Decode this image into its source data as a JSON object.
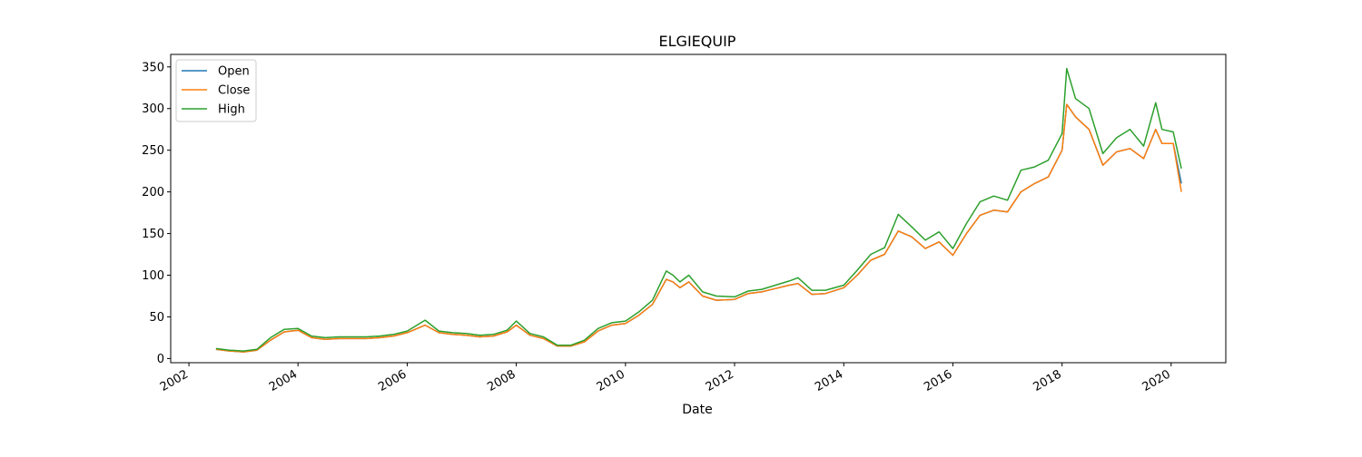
{
  "chart_data": {
    "type": "line",
    "title": "ELGIEQUIP",
    "xlabel": "Date",
    "ylabel": "",
    "xlim": [
      "2001-09-01",
      "2021-01-01"
    ],
    "ylim": [
      -5,
      365
    ],
    "x_ticks": [
      "2002",
      "2004",
      "2006",
      "2008",
      "2010",
      "2012",
      "2014",
      "2016",
      "2018",
      "2020"
    ],
    "y_ticks": [
      0,
      50,
      100,
      150,
      200,
      250,
      300,
      350
    ],
    "grid": false,
    "legend_position": "top-left",
    "x": [
      "2002-07-01",
      "2002-10-01",
      "2003-01-01",
      "2003-04-01",
      "2003-07-01",
      "2003-10-01",
      "2004-01-01",
      "2004-04-01",
      "2004-07-01",
      "2004-10-01",
      "2005-01-01",
      "2005-04-01",
      "2005-07-01",
      "2005-10-01",
      "2006-01-01",
      "2006-05-01",
      "2006-08-01",
      "2006-11-01",
      "2007-02-01",
      "2007-05-01",
      "2007-08-01",
      "2007-11-01",
      "2008-01-01",
      "2008-04-01",
      "2008-07-01",
      "2008-10-01",
      "2009-01-01",
      "2009-04-01",
      "2009-07-01",
      "2009-10-01",
      "2010-01-01",
      "2010-04-01",
      "2010-07-01",
      "2010-10-01",
      "2010-11-15",
      "2011-01-01",
      "2011-03-01",
      "2011-06-01",
      "2011-09-01",
      "2012-01-01",
      "2012-04-01",
      "2012-07-01",
      "2012-10-01",
      "2013-01-01",
      "2013-03-01",
      "2013-06-01",
      "2013-09-01",
      "2014-01-01",
      "2014-04-01",
      "2014-07-01",
      "2014-10-01",
      "2015-01-01",
      "2015-04-01",
      "2015-07-01",
      "2015-10-01",
      "2016-01-01",
      "2016-04-01",
      "2016-07-01",
      "2016-10-01",
      "2017-01-01",
      "2017-04-01",
      "2017-07-01",
      "2017-10-01",
      "2018-01-01",
      "2018-02-01",
      "2018-04-01",
      "2018-07-01",
      "2018-10-01",
      "2019-01-01",
      "2019-04-01",
      "2019-07-01",
      "2019-09-20",
      "2019-11-01",
      "2020-01-15",
      "2020-03-10"
    ],
    "series": [
      {
        "name": "Open",
        "color": "#1f77b4",
        "values": [
          11,
          9,
          8,
          10,
          22,
          32,
          34,
          25,
          23,
          24,
          24,
          24,
          25,
          27,
          31,
          40,
          31,
          29,
          28,
          26,
          27,
          32,
          40,
          28,
          24,
          15,
          15,
          20,
          33,
          40,
          42,
          52,
          65,
          95,
          92,
          85,
          92,
          75,
          70,
          71,
          78,
          80,
          84,
          88,
          90,
          77,
          78,
          85,
          100,
          118,
          125,
          153,
          146,
          132,
          140,
          124,
          150,
          172,
          178,
          176,
          200,
          210,
          218,
          250,
          305,
          290,
          275,
          232,
          248,
          252,
          240,
          275,
          258,
          258,
          210
        ]
      },
      {
        "name": "Close",
        "color": "#ff7f0e",
        "values": [
          11,
          9,
          8,
          10,
          22,
          32,
          34,
          25,
          23,
          24,
          24,
          24,
          25,
          27,
          31,
          40,
          31,
          29,
          28,
          26,
          27,
          32,
          40,
          28,
          24,
          15,
          15,
          20,
          33,
          40,
          42,
          52,
          65,
          95,
          92,
          85,
          92,
          75,
          70,
          71,
          78,
          80,
          84,
          88,
          90,
          77,
          78,
          85,
          100,
          118,
          125,
          153,
          146,
          132,
          140,
          124,
          150,
          172,
          178,
          176,
          200,
          210,
          218,
          250,
          305,
          290,
          275,
          232,
          248,
          252,
          240,
          275,
          258,
          258,
          200
        ]
      },
      {
        "name": "High",
        "color": "#2ca02c",
        "values": [
          12,
          10,
          9,
          11,
          25,
          35,
          36,
          27,
          25,
          26,
          26,
          26,
          27,
          29,
          33,
          46,
          33,
          31,
          30,
          28,
          29,
          34,
          45,
          30,
          26,
          16,
          16,
          22,
          36,
          43,
          45,
          56,
          70,
          105,
          100,
          92,
          100,
          80,
          75,
          74,
          81,
          83,
          88,
          93,
          97,
          82,
          82,
          88,
          106,
          125,
          133,
          173,
          158,
          142,
          152,
          132,
          162,
          188,
          195,
          190,
          226,
          230,
          238,
          270,
          348,
          312,
          300,
          246,
          265,
          275,
          255,
          307,
          275,
          272,
          228
        ]
      }
    ]
  }
}
